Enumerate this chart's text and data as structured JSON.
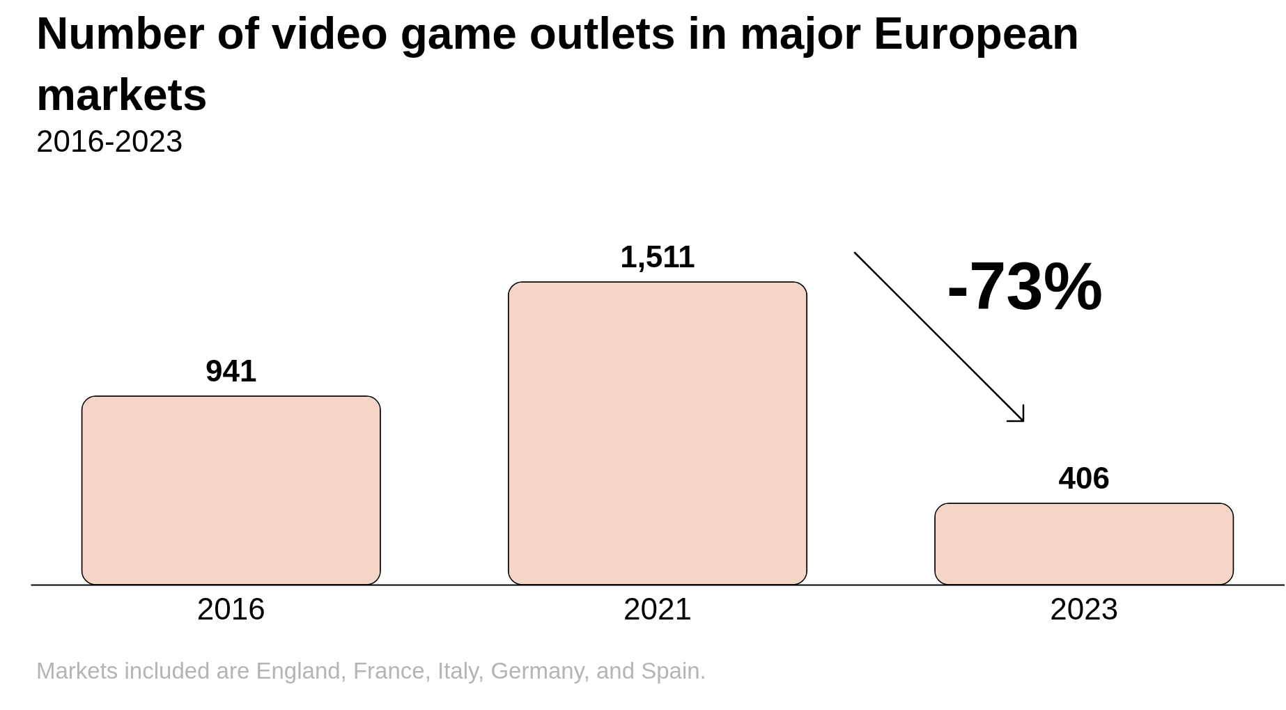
{
  "chart_data": {
    "type": "bar",
    "title": "Number of video game outlets in major European markets",
    "subtitle": "2016-2023",
    "categories": [
      "2016",
      "2021",
      "2023"
    ],
    "values": [
      941,
      1511,
      406
    ],
    "color": "#f5d5c6",
    "value_labels": [
      "941",
      "1,511",
      "406"
    ],
    "annotations": [
      "-73%",
      "Markets included are England, France, Italy, Germany, and Spain."
    ]
  }
}
